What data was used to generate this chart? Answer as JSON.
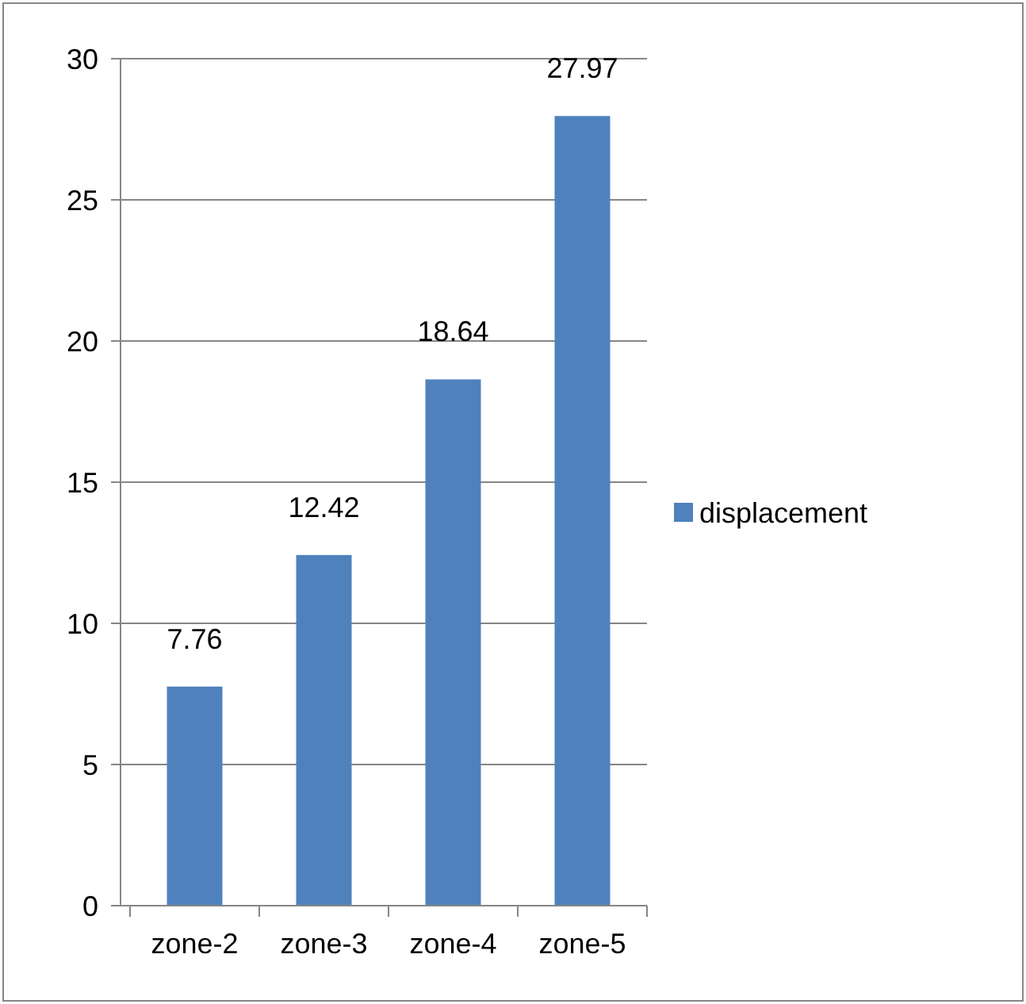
{
  "chart_data": {
    "type": "bar",
    "categories": [
      "zone-2",
      "zone-3",
      "zone-4",
      "zone-5"
    ],
    "series": [
      {
        "name": "displacement",
        "color": "#4f81bd",
        "values": [
          7.76,
          12.42,
          18.64,
          27.97
        ]
      }
    ],
    "ylim": [
      0,
      30
    ],
    "yticks": [
      0,
      5,
      10,
      15,
      20,
      25,
      30
    ],
    "grid": "y",
    "legend": "right",
    "data_labels": true
  }
}
